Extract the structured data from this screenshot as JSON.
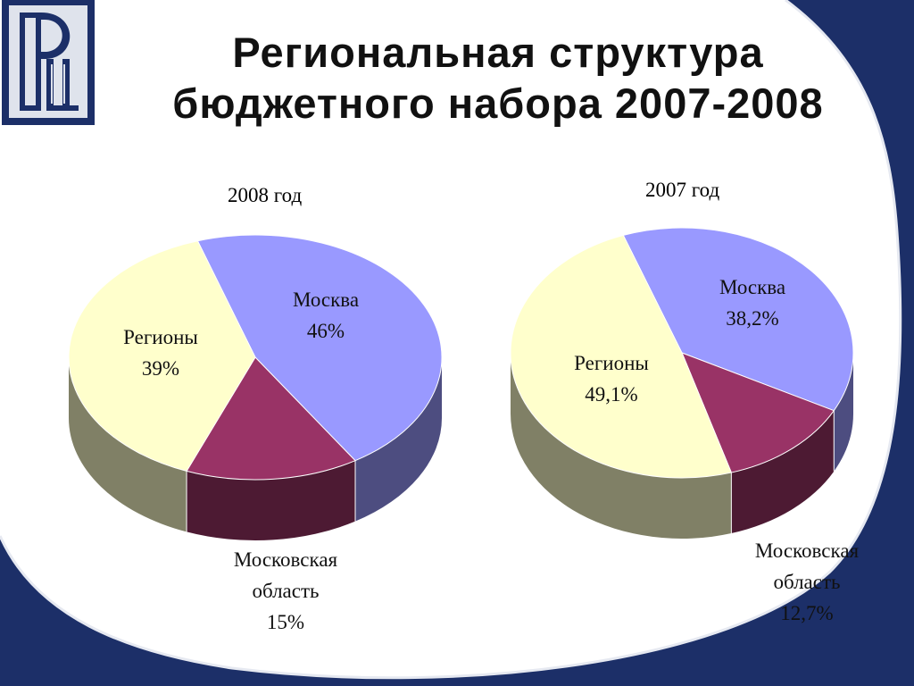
{
  "title": {
    "line1": "Региональная структура",
    "line2": "бюджетного набора 2007-2008"
  },
  "chart_data": [
    {
      "type": "pie",
      "title": "2008 год",
      "slices": [
        {
          "name": "Москва",
          "value": 46,
          "label": "46%",
          "color": "#9999ff"
        },
        {
          "name": "Московская область",
          "value": 15,
          "label": "15%",
          "color": "#993366"
        },
        {
          "name": "Регионы",
          "value": 39,
          "label": "39%",
          "color": "#ffffcc"
        }
      ]
    },
    {
      "type": "pie",
      "title": "2007 год",
      "slices": [
        {
          "name": "Москва",
          "value": 38.2,
          "label": "38,2%",
          "color": "#9999ff"
        },
        {
          "name": "Московская область",
          "value": 12.7,
          "label": "12,7%",
          "color": "#993366"
        },
        {
          "name": "Регионы",
          "value": 49.1,
          "label": "49,1%",
          "color": "#ffffcc"
        }
      ]
    }
  ],
  "labels": {
    "c2008": {
      "moscow": [
        "Москва",
        "46%"
      ],
      "regions": [
        "Регионы",
        "39%"
      ],
      "oblast": [
        "Московская",
        "область",
        "15%"
      ]
    },
    "c2007": {
      "moscow": [
        "Москва",
        "38,2%"
      ],
      "regions": [
        "Регионы",
        "49,1%"
      ],
      "oblast": [
        "Московская",
        "область",
        "12,7%"
      ]
    }
  },
  "colors": {
    "navy": "#1c2f68",
    "logo_fill": "#dfe3ec"
  },
  "logo": {
    "name": "hse-logo-icon"
  }
}
